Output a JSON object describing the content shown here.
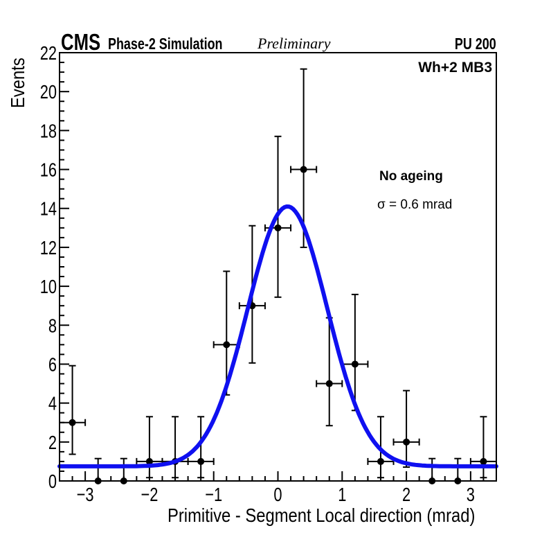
{
  "header": {
    "experiment": "CMS",
    "sim_label": "Phase-2 Simulation",
    "preliminary_label": "Preliminary",
    "pileup_label": "PU 200"
  },
  "plot": {
    "corner_label": "Wh+2 MB3",
    "annotation_line1": "No ageing",
    "annotation_line2": "σ = 0.6 mrad"
  },
  "chart_data": {
    "type": "scatter",
    "title": "",
    "xlabel": "Primitive - Segment Local direction (mrad)",
    "ylabel": "Events",
    "xlim": [
      -3.4,
      3.4
    ],
    "ylim": [
      0,
      22
    ],
    "grid": false,
    "legend": "none",
    "x_minor_step": 0.2,
    "y_minor_step": 0.5,
    "bin_half_width": 0.2,
    "marker_color": "#000000",
    "x_ticks": [
      {
        "v": -3,
        "label": "−3"
      },
      {
        "v": -2,
        "label": "−2"
      },
      {
        "v": -1,
        "label": "−1"
      },
      {
        "v": 0,
        "label": "0"
      },
      {
        "v": 1,
        "label": "1"
      },
      {
        "v": 2,
        "label": "2"
      },
      {
        "v": 3,
        "label": "3"
      }
    ],
    "y_ticks": [
      {
        "v": 0,
        "label": "0"
      },
      {
        "v": 2,
        "label": "2"
      },
      {
        "v": 4,
        "label": "4"
      },
      {
        "v": 6,
        "label": "6"
      },
      {
        "v": 8,
        "label": "8"
      },
      {
        "v": 10,
        "label": "10"
      },
      {
        "v": 12,
        "label": "12"
      },
      {
        "v": 14,
        "label": "14"
      },
      {
        "v": 16,
        "label": "16"
      },
      {
        "v": 18,
        "label": "18"
      },
      {
        "v": 20,
        "label": "20"
      },
      {
        "v": 22,
        "label": "22"
      }
    ],
    "points": [
      {
        "x": -3.2,
        "y": 3,
        "err_low": 1.63,
        "err_up": 2.92
      },
      {
        "x": -2.8,
        "y": 0,
        "err_low": 0,
        "err_up": 1.15
      },
      {
        "x": -2.4,
        "y": 0,
        "err_low": 0,
        "err_up": 1.15
      },
      {
        "x": -2.0,
        "y": 1,
        "err_low": 0.83,
        "err_up": 2.3
      },
      {
        "x": -1.6,
        "y": 1,
        "err_low": 0.83,
        "err_up": 2.3
      },
      {
        "x": -1.2,
        "y": 1,
        "err_low": 0.83,
        "err_up": 2.3
      },
      {
        "x": -0.8,
        "y": 7,
        "err_low": 2.58,
        "err_up": 3.77
      },
      {
        "x": -0.4,
        "y": 9,
        "err_low": 2.94,
        "err_up": 4.11
      },
      {
        "x": 0.0,
        "y": 13,
        "err_low": 3.56,
        "err_up": 4.7
      },
      {
        "x": 0.4,
        "y": 16,
        "err_low": 4.0,
        "err_up": 5.16
      },
      {
        "x": 0.8,
        "y": 5,
        "err_low": 2.16,
        "err_up": 3.38
      },
      {
        "x": 1.2,
        "y": 6,
        "err_low": 2.38,
        "err_up": 3.58
      },
      {
        "x": 1.6,
        "y": 1,
        "err_low": 0.83,
        "err_up": 2.3
      },
      {
        "x": 2.0,
        "y": 2,
        "err_low": 1.29,
        "err_up": 2.64
      },
      {
        "x": 2.4,
        "y": 0,
        "err_low": 0,
        "err_up": 1.15
      },
      {
        "x": 2.8,
        "y": 0,
        "err_low": 0,
        "err_up": 1.15
      },
      {
        "x": 3.2,
        "y": 1,
        "err_low": 0.83,
        "err_up": 2.3
      }
    ],
    "fit": {
      "shape": "gaussian_plus_constant",
      "amplitude": 13.35,
      "mean": 0.15,
      "sigma": 0.62,
      "constant": 0.75,
      "color": "#0f10f0",
      "line_width": 6
    }
  }
}
